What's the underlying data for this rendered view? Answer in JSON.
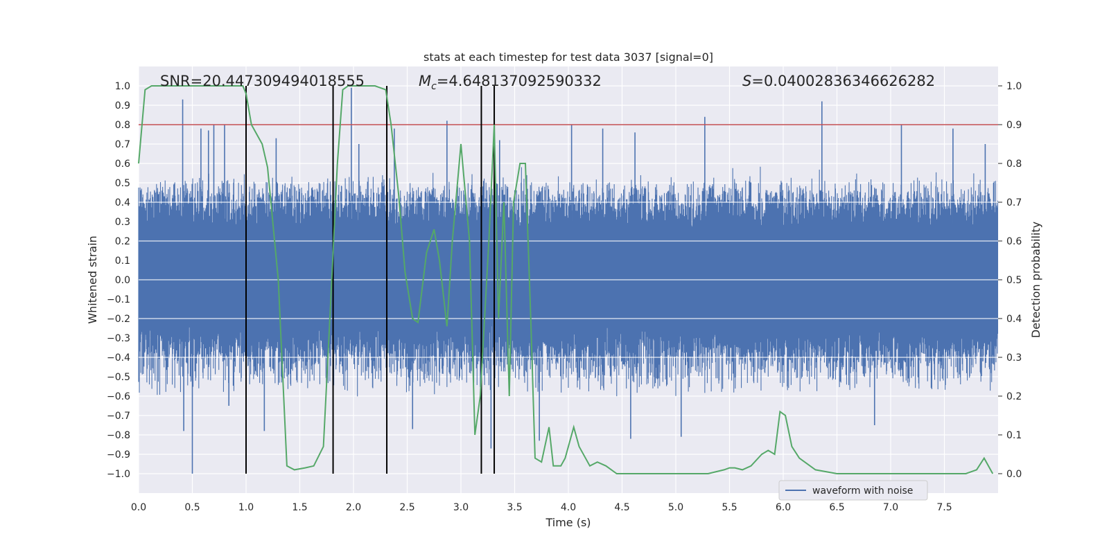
{
  "chart_data": {
    "type": "line",
    "title": "stats at each timestep for test data 3037 [signal=0]",
    "xlabel": "Time (s)",
    "ylabel": "Whitened strain",
    "y2label": "Detection probability",
    "xlim": [
      0,
      8
    ],
    "ylim": [
      -1.1,
      1.1
    ],
    "y2lim": [
      -0.05,
      1.05
    ],
    "xticks": [
      0.0,
      0.5,
      1.0,
      1.5,
      2.0,
      2.5,
      3.0,
      3.5,
      4.0,
      4.5,
      5.0,
      5.5,
      6.0,
      6.5,
      7.0,
      7.5
    ],
    "xtick_labels": [
      "0.0",
      "0.5",
      "1.0",
      "1.5",
      "2.0",
      "2.5",
      "3.0",
      "3.5",
      "4.0",
      "4.5",
      "5.0",
      "5.5",
      "6.0",
      "6.5",
      "7.0",
      "7.5"
    ],
    "yticks": [
      1.0,
      0.9,
      0.8,
      0.7,
      0.6,
      0.5,
      0.4,
      0.3,
      0.2,
      0.1,
      0.0,
      -0.1,
      -0.2,
      -0.3,
      -0.4,
      -0.5,
      -0.6,
      -0.7,
      -0.8,
      -0.9,
      -1.0
    ],
    "ytick_labels": [
      "1.0",
      "0.9",
      "0.8",
      "0.7",
      "0.6",
      "0.5",
      "0.4",
      "0.3",
      "0.2",
      "0.1",
      "0.0",
      "−0.1",
      "−0.2",
      "−0.3",
      "−0.4",
      "−0.5",
      "−0.6",
      "−0.7",
      "−0.8",
      "−0.9",
      "−1.0"
    ],
    "y2ticks": [
      1.0,
      0.9,
      0.8,
      0.7,
      0.6,
      0.5,
      0.4,
      0.3,
      0.2,
      0.1,
      0.0
    ],
    "y2tick_labels": [
      "1.0",
      "0.9",
      "0.8",
      "0.7",
      "0.6",
      "0.5",
      "0.4",
      "0.3",
      "0.2",
      "0.1",
      "0.0"
    ],
    "grid": true,
    "legend": {
      "position": "bottom-right",
      "entries": [
        "waveform with noise"
      ]
    },
    "annotations": {
      "snr": "SNR=20.447309494018555",
      "mc_symbol": "M",
      "mc_sub": "c",
      "mc_value": "=4.648137092590332",
      "s_symbol": "S",
      "s_value": "=0.04002836346626282"
    },
    "threshold": {
      "y": 0.8,
      "color": "#c44e52"
    },
    "vertical_markers": [
      1.0,
      1.81,
      2.31,
      3.19,
      3.31
    ],
    "waveform": {
      "color": "#4c72b0",
      "envelope": 0.42,
      "spikes": [
        {
          "x": 0.41,
          "y": 0.93
        },
        {
          "x": 0.5,
          "y": -1.0
        },
        {
          "x": 0.58,
          "y": 0.78
        },
        {
          "x": 0.65,
          "y": 0.77
        },
        {
          "x": 0.42,
          "y": -0.78
        },
        {
          "x": 0.7,
          "y": 0.8
        },
        {
          "x": 0.8,
          "y": 0.8
        },
        {
          "x": 0.84,
          "y": -0.65
        },
        {
          "x": 1.28,
          "y": 0.73
        },
        {
          "x": 1.17,
          "y": -0.78
        },
        {
          "x": 1.98,
          "y": 0.99
        },
        {
          "x": 2.05,
          "y": 0.7
        },
        {
          "x": 2.38,
          "y": 0.78
        },
        {
          "x": 2.55,
          "y": -0.77
        },
        {
          "x": 2.87,
          "y": 0.82
        },
        {
          "x": 3.19,
          "y": 0.77
        },
        {
          "x": 3.28,
          "y": -0.87
        },
        {
          "x": 3.36,
          "y": 0.72
        },
        {
          "x": 3.73,
          "y": -0.83
        },
        {
          "x": 4.03,
          "y": 0.8
        },
        {
          "x": 4.32,
          "y": 0.78
        },
        {
          "x": 4.58,
          "y": -0.82
        },
        {
          "x": 4.62,
          "y": 0.76
        },
        {
          "x": 5.05,
          "y": -0.81
        },
        {
          "x": 5.27,
          "y": 0.84
        },
        {
          "x": 6.36,
          "y": 0.92
        },
        {
          "x": 7.1,
          "y": 0.8
        },
        {
          "x": 7.58,
          "y": 0.78
        },
        {
          "x": 7.88,
          "y": 0.7
        },
        {
          "x": 6.85,
          "y": -0.75
        }
      ]
    },
    "detection_probability": {
      "color": "#55a868",
      "x": [
        0.0,
        0.06,
        0.12,
        0.25,
        0.5,
        0.75,
        0.9,
        0.97,
        1.0,
        1.05,
        1.15,
        1.2,
        1.3,
        1.38,
        1.45,
        1.55,
        1.63,
        1.72,
        1.78,
        1.85,
        1.9,
        1.95,
        2.05,
        2.2,
        2.3,
        2.35,
        2.42,
        2.48,
        2.55,
        2.6,
        2.64,
        2.68,
        2.75,
        2.8,
        2.87,
        2.92,
        3.0,
        3.08,
        3.13,
        3.18,
        3.23,
        3.26,
        3.31,
        3.35,
        3.4,
        3.45,
        3.49,
        3.55,
        3.6,
        3.65,
        3.69,
        3.75,
        3.82,
        3.86,
        3.93,
        3.97,
        4.05,
        4.1,
        4.2,
        4.27,
        4.35,
        4.45,
        4.6,
        5.0,
        5.3,
        5.45,
        5.5,
        5.55,
        5.62,
        5.7,
        5.8,
        5.86,
        5.92,
        5.97,
        6.02,
        6.08,
        6.15,
        6.2,
        6.3,
        6.5,
        7.0,
        7.5,
        7.7,
        7.8,
        7.87,
        7.95
      ],
      "y": [
        0.8,
        0.99,
        1.0,
        1.0,
        1.0,
        1.0,
        1.0,
        1.0,
        0.98,
        0.9,
        0.85,
        0.79,
        0.5,
        0.02,
        0.01,
        0.015,
        0.02,
        0.07,
        0.4,
        0.8,
        0.99,
        1.0,
        1.0,
        1.0,
        0.99,
        0.9,
        0.72,
        0.52,
        0.4,
        0.39,
        0.48,
        0.57,
        0.63,
        0.55,
        0.38,
        0.6,
        0.85,
        0.6,
        0.1,
        0.2,
        0.45,
        0.6,
        0.9,
        0.4,
        0.7,
        0.2,
        0.7,
        0.8,
        0.8,
        0.4,
        0.04,
        0.03,
        0.12,
        0.02,
        0.02,
        0.04,
        0.12,
        0.07,
        0.02,
        0.03,
        0.02,
        0.0,
        0.0,
        0.0,
        0.0,
        0.01,
        0.015,
        0.015,
        0.01,
        0.02,
        0.05,
        0.06,
        0.05,
        0.16,
        0.15,
        0.07,
        0.04,
        0.03,
        0.01,
        0.0,
        0.0,
        0.0,
        0.0,
        0.01,
        0.04,
        0.0
      ]
    }
  }
}
